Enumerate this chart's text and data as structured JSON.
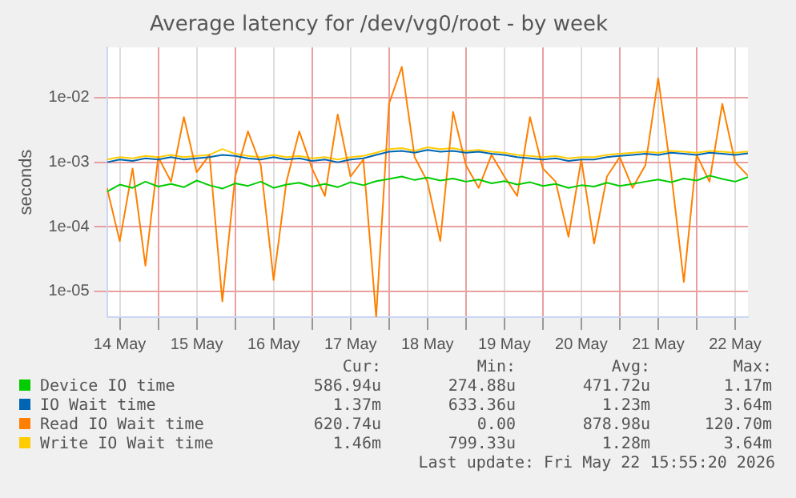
{
  "chart_data": {
    "type": "line",
    "title": "Average latency for /dev/vg0/root - by week",
    "ylabel": "seconds",
    "x": [
      "2026-05-14T08:00",
      "2026-05-14T12:00",
      "2026-05-14T16:00",
      "2026-05-14T20:00",
      "2026-05-15T00:00",
      "2026-05-15T04:00",
      "2026-05-15T08:00",
      "2026-05-15T12:00",
      "2026-05-15T16:00",
      "2026-05-15T20:00",
      "2026-05-16T00:00",
      "2026-05-16T04:00",
      "2026-05-16T08:00",
      "2026-05-16T12:00",
      "2026-05-16T16:00",
      "2026-05-16T20:00",
      "2026-05-17T00:00",
      "2026-05-17T04:00",
      "2026-05-17T08:00",
      "2026-05-17T12:00",
      "2026-05-17T16:00",
      "2026-05-17T20:00",
      "2026-05-18T00:00",
      "2026-05-18T04:00",
      "2026-05-18T08:00",
      "2026-05-18T12:00",
      "2026-05-18T16:00",
      "2026-05-18T20:00",
      "2026-05-19T00:00",
      "2026-05-19T04:00",
      "2026-05-19T08:00",
      "2026-05-19T12:00",
      "2026-05-19T16:00",
      "2026-05-19T20:00",
      "2026-05-20T00:00",
      "2026-05-20T04:00",
      "2026-05-20T08:00",
      "2026-05-20T12:00",
      "2026-05-20T16:00",
      "2026-05-20T20:00",
      "2026-05-21T00:00",
      "2026-05-21T04:00",
      "2026-05-21T08:00",
      "2026-05-21T12:00",
      "2026-05-21T16:00",
      "2026-05-21T20:00",
      "2026-05-22T00:00",
      "2026-05-22T04:00",
      "2026-05-22T08:00",
      "2026-05-22T12:00",
      "2026-05-22T16:00"
    ],
    "series": [
      {
        "name": "Device IO time",
        "color": "#00cc00",
        "values": [
          0.00035,
          0.00045,
          0.0004,
          0.0005,
          0.00042,
          0.00046,
          0.00041,
          0.00052,
          0.00044,
          0.00039,
          0.00047,
          0.00043,
          0.0005,
          0.0004,
          0.00045,
          0.00048,
          0.00042,
          0.00046,
          0.00041,
          0.00049,
          0.00044,
          0.00051,
          0.00055,
          0.0006,
          0.00053,
          0.00058,
          0.00052,
          0.00056,
          0.0005,
          0.00054,
          0.00047,
          0.00051,
          0.00045,
          0.00049,
          0.00043,
          0.00046,
          0.0004,
          0.00044,
          0.00042,
          0.00048,
          0.00043,
          0.00046,
          0.0005,
          0.00054,
          0.00049,
          0.00056,
          0.00052,
          0.00062,
          0.00055,
          0.0005,
          0.00059
        ]
      },
      {
        "name": "IO Wait time",
        "color": "#0066b3",
        "values": [
          0.001,
          0.0011,
          0.00105,
          0.00115,
          0.0011,
          0.0012,
          0.0011,
          0.00115,
          0.0012,
          0.0013,
          0.00125,
          0.00115,
          0.0011,
          0.0012,
          0.0011,
          0.00115,
          0.00105,
          0.0011,
          0.001,
          0.0011,
          0.00115,
          0.0013,
          0.00145,
          0.0015,
          0.0014,
          0.00155,
          0.00145,
          0.0015,
          0.0014,
          0.00145,
          0.00135,
          0.0013,
          0.0012,
          0.00115,
          0.0011,
          0.00115,
          0.00105,
          0.0011,
          0.0011,
          0.0012,
          0.00125,
          0.0013,
          0.00135,
          0.0013,
          0.0014,
          0.00135,
          0.0013,
          0.0014,
          0.00135,
          0.0013,
          0.00137
        ]
      },
      {
        "name": "Read IO Wait time",
        "color": "#ff8000",
        "values": [
          0.0004,
          6e-05,
          0.0008,
          2.5e-05,
          0.0012,
          0.0005,
          0.005,
          0.0007,
          0.0013,
          7e-06,
          0.0006,
          0.003,
          0.0009,
          1.5e-05,
          0.0005,
          0.003,
          0.0008,
          0.0003,
          0.0055,
          0.0006,
          0.0011,
          4e-06,
          0.008,
          0.03,
          0.0012,
          0.0005,
          6e-05,
          0.006,
          0.0009,
          0.0004,
          0.0013,
          0.0006,
          0.0003,
          0.005,
          0.0008,
          0.0005,
          7e-05,
          0.0011,
          5.5e-05,
          0.0006,
          0.0012,
          0.0004,
          0.0009,
          0.02,
          0.0007,
          1.4e-05,
          0.0013,
          0.0005,
          0.008,
          0.001,
          0.00062
        ]
      },
      {
        "name": "Write IO Wait time",
        "color": "#ffcc00",
        "values": [
          0.0011,
          0.0012,
          0.00115,
          0.00125,
          0.0012,
          0.0013,
          0.0012,
          0.00125,
          0.0013,
          0.0016,
          0.00135,
          0.00125,
          0.0012,
          0.0013,
          0.0012,
          0.00125,
          0.00115,
          0.0012,
          0.0011,
          0.0012,
          0.00125,
          0.0014,
          0.0016,
          0.00165,
          0.0015,
          0.0017,
          0.0016,
          0.00165,
          0.0015,
          0.00155,
          0.00145,
          0.0014,
          0.0013,
          0.00125,
          0.0012,
          0.00125,
          0.00115,
          0.0012,
          0.0012,
          0.0013,
          0.00135,
          0.0014,
          0.00145,
          0.0014,
          0.0015,
          0.00145,
          0.0014,
          0.0015,
          0.00145,
          0.0014,
          0.00146
        ]
      }
    ],
    "xlim": [
      "2026-05-14T08:00",
      "2026-05-22T16:00"
    ],
    "xticks": [
      {
        "value": "2026-05-14T12:00",
        "label": "14 May"
      },
      {
        "value": "2026-05-15T00:00",
        "label": null
      },
      {
        "value": "2026-05-15T12:00",
        "label": "15 May"
      },
      {
        "value": "2026-05-16T00:00",
        "label": null
      },
      {
        "value": "2026-05-16T12:00",
        "label": "16 May"
      },
      {
        "value": "2026-05-17T00:00",
        "label": null
      },
      {
        "value": "2026-05-17T12:00",
        "label": "17 May"
      },
      {
        "value": "2026-05-18T00:00",
        "label": null
      },
      {
        "value": "2026-05-18T12:00",
        "label": "18 May"
      },
      {
        "value": "2026-05-19T00:00",
        "label": null
      },
      {
        "value": "2026-05-19T12:00",
        "label": "19 May"
      },
      {
        "value": "2026-05-20T00:00",
        "label": null
      },
      {
        "value": "2026-05-20T12:00",
        "label": "20 May"
      },
      {
        "value": "2026-05-21T00:00",
        "label": null
      },
      {
        "value": "2026-05-21T12:00",
        "label": "21 May"
      },
      {
        "value": "2026-05-22T00:00",
        "label": null
      },
      {
        "value": "2026-05-22T12:00",
        "label": "22 May"
      }
    ],
    "ylim": [
      4e-06,
      0.06
    ],
    "yticks": [
      {
        "value": 1e-05,
        "label": "1e-05"
      },
      {
        "value": 0.0001,
        "label": "1e-04"
      },
      {
        "value": 0.001,
        "label": "1e-03"
      },
      {
        "value": 0.01,
        "label": "1e-02"
      }
    ],
    "log": "y",
    "grid": true,
    "legend": "bottom",
    "marker": "none",
    "line_style": "solid",
    "annotations": [
      "Cur:",
      "Min:",
      "Avg:",
      "Max:",
      "586.94u",
      "274.88u",
      "471.72u",
      "1.17m",
      "1.37m",
      "633.36u",
      "1.23m",
      "3.64m",
      "620.74u",
      "0.00",
      "878.98u",
      "120.70m",
      "1.46m",
      "799.33u",
      "1.28m",
      "3.64m",
      "Last update: Fri May 22 15:55:20 2026"
    ]
  }
}
